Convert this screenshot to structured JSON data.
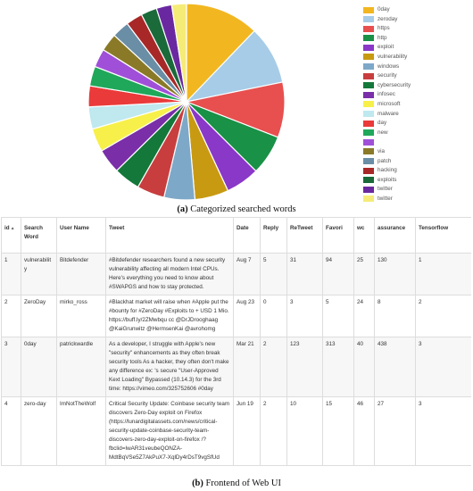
{
  "captions": {
    "top_letter": "(a)",
    "top_text": "Categorized searched words",
    "bottom_letter": "(b)",
    "bottom_text": "Frontend of Web UI"
  },
  "chart_data": {
    "type": "pie",
    "legend_position": "right",
    "slices": [
      {
        "label": "0day",
        "value": 12.0,
        "color": "#f2b720"
      },
      {
        "label": "zeroday",
        "value": 9.5,
        "color": "#a6cce8"
      },
      {
        "label": "https",
        "value": 9.0,
        "color": "#e84f4f"
      },
      {
        "label": "http",
        "value": 6.5,
        "color": "#199146"
      },
      {
        "label": "exploit",
        "value": 5.5,
        "color": "#8a38c8"
      },
      {
        "label": "vulnerability",
        "value": 5.5,
        "color": "#c89a12"
      },
      {
        "label": "windows",
        "value": 5.0,
        "color": "#7ea8c8"
      },
      {
        "label": "security",
        "value": 4.5,
        "color": "#c83e3e"
      },
      {
        "label": "cybersecurity",
        "value": 4.3,
        "color": "#14783a"
      },
      {
        "label": "infosec",
        "value": 4.0,
        "color": "#7a2ea8"
      },
      {
        "label": "microsoft",
        "value": 3.8,
        "color": "#f7f04a"
      },
      {
        "label": "malware",
        "value": 3.6,
        "color": "#bfe8ef"
      },
      {
        "label": "day",
        "value": 3.4,
        "color": "#ea3a3a"
      },
      {
        "label": "new",
        "value": 3.2,
        "color": "#1fa85a"
      },
      {
        "label": "",
        "value": 3.0,
        "color": "#a050d8"
      },
      {
        "label": "via",
        "value": 2.9,
        "color": "#8a7a28"
      },
      {
        "label": "patch",
        "value": 2.8,
        "color": "#6a8ea6"
      },
      {
        "label": "hacking",
        "value": 2.7,
        "color": "#a82828"
      },
      {
        "label": "exploits",
        "value": 2.6,
        "color": "#1a6a3a"
      },
      {
        "label": "twitter",
        "value": 2.5,
        "color": "#6a28a0"
      },
      {
        "label": "twitter",
        "value": 2.4,
        "color": "#f5ec78"
      }
    ]
  },
  "table": {
    "columns": [
      {
        "label": "id",
        "sorted": true,
        "sort_glyph": "▲"
      },
      {
        "label": "Search Word",
        "sorted": false
      },
      {
        "label": "User Name",
        "sorted": false
      },
      {
        "label": "Tweet",
        "sorted": false
      },
      {
        "label": "Date",
        "sorted": false
      },
      {
        "label": "Reply",
        "sorted": false
      },
      {
        "label": "ReTweet",
        "sorted": false
      },
      {
        "label": "Favori",
        "sorted": false
      },
      {
        "label": "wc",
        "sorted": false
      },
      {
        "label": "assurance",
        "sorted": false
      },
      {
        "label": "Tensorflow",
        "sorted": false
      }
    ],
    "rows": [
      [
        "1",
        "vulnerability",
        "Bitdefender",
        "#Bitdefender researchers found a new security vulnerability affecting all modern Intel CPUs. Here's everything you need to know about #SWAPGS and how to stay protected.",
        "Aug 7",
        "5",
        "31",
        "94",
        "25",
        "130",
        "1"
      ],
      [
        "2",
        "ZeroDay",
        "mirko_ross",
        "#Blackhat market will raise when #Apple put the #bounty for #ZeroDay #Exploits to + USD 1 Mio. https://buff.ly/2ZMwbqu cc @DrJDrooghaag @KaiGrunwitz @HermsenKai @avrohomg",
        "Aug 23",
        "0",
        "3",
        "5",
        "24",
        "8",
        "2"
      ],
      [
        "3",
        "0day",
        "patrickwardle",
        "As a developer, I struggle with Apple's new \"security\" enhancements as they often break security tools As a hacker, they often don't make any difference ex: 's secure \"User-Approved Kext Loading\" Bypassed (10.14.3) for the 3rd time: https://vimeo.com/325752606 #0day",
        "Mar 21",
        "2",
        "123",
        "313",
        "40",
        "438",
        "3"
      ],
      [
        "4",
        "zero-day",
        "ImNotTheWolf",
        "Critical Security Update: Coinbase security team discovers Zero-Day exploit on Firefox (https://lunardigitalassets.com/news/critical-security-update-coinbase-security-team-discovers-zero-day-exploit-on-firefox /?fbclid=IwAR31veubeQONZA-MdtBqVSe5Z7AkPuX7-XqlDy4rDsT9vgSfUd",
        "Jun 19",
        "2",
        "10",
        "15",
        "46",
        "27",
        "3"
      ]
    ]
  }
}
